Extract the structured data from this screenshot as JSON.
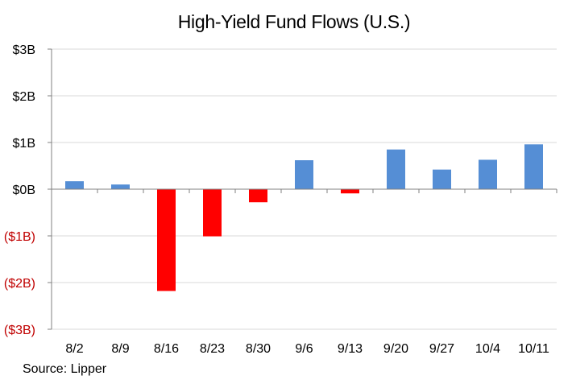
{
  "chart_data": {
    "type": "bar",
    "title": "High-Yield  Fund Flows (U.S.)",
    "xlabel": "",
    "ylabel": "",
    "categories": [
      "8/2",
      "8/9",
      "8/16",
      "8/23",
      "8/30",
      "9/6",
      "9/13",
      "9/20",
      "9/27",
      "10/4",
      "10/11"
    ],
    "values": [
      0.17,
      0.1,
      -2.18,
      -1.01,
      -0.28,
      0.62,
      -0.09,
      0.85,
      0.42,
      0.63,
      0.96
    ],
    "ylim": [
      -3,
      3
    ],
    "yticks": [
      3,
      2,
      1,
      0,
      -1,
      -2,
      -3
    ],
    "ytick_labels": [
      "$3B",
      "$2B",
      "$1B",
      "$0B",
      "($1B)",
      "($2B)",
      "($3B)"
    ],
    "grid": true,
    "legend": "none",
    "colors": {
      "positive": "#558ED5",
      "negative": "#FF0000",
      "negative_tick_label": "#C00000",
      "gridline": "#D9D9D9",
      "axis": "#808080"
    }
  },
  "footer": {
    "source": "Source: Lipper"
  }
}
